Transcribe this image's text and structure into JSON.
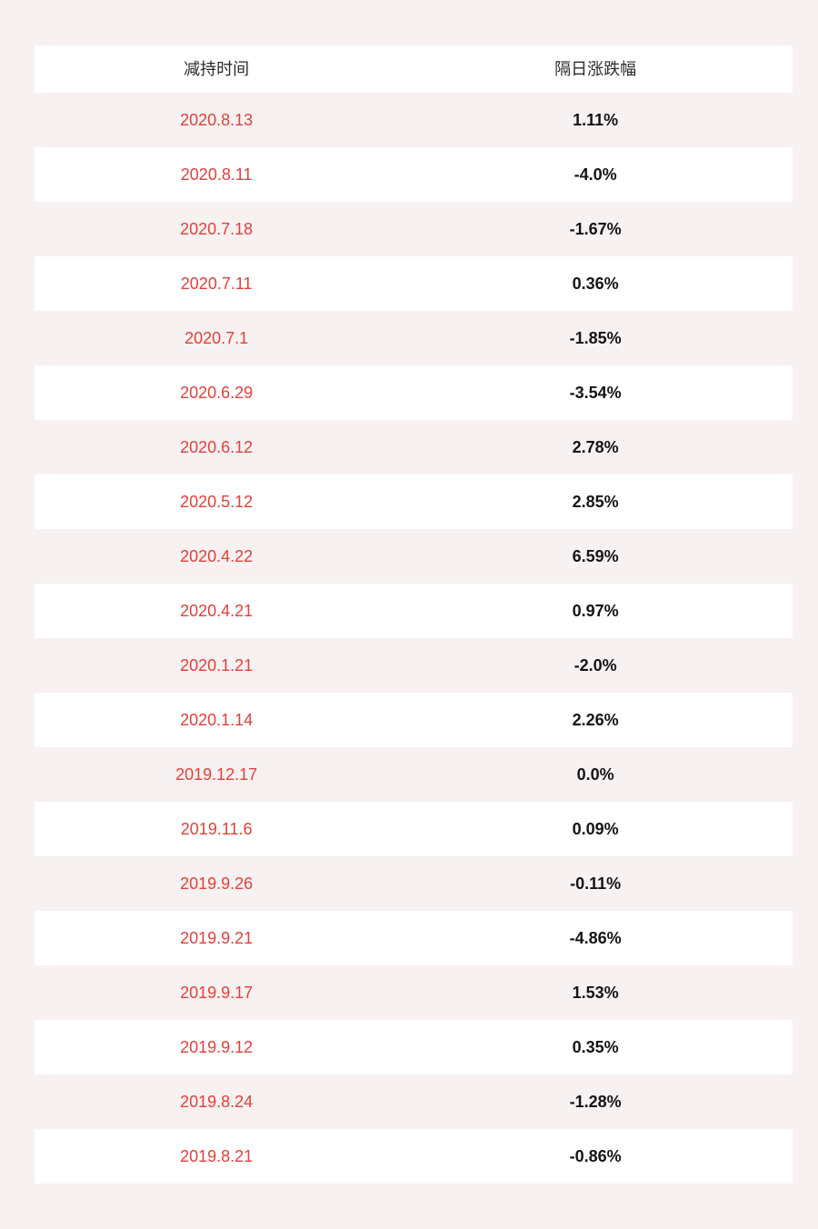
{
  "page": {
    "background_color": "#f7f1f1",
    "row_alt_color": "#ffffff",
    "date_text_color": "#e3403a",
    "value_text_color": "#141414"
  },
  "chart_data": {
    "type": "table",
    "title": "",
    "columns": [
      "减持时间",
      "隔日涨跌幅"
    ],
    "rows": [
      [
        "2020.8.13",
        "1.11%"
      ],
      [
        "2020.8.11",
        "-4.0%"
      ],
      [
        "2020.7.18",
        "-1.67%"
      ],
      [
        "2020.7.11",
        "0.36%"
      ],
      [
        "2020.7.1",
        "-1.85%"
      ],
      [
        "2020.6.29",
        "-3.54%"
      ],
      [
        "2020.6.12",
        "2.78%"
      ],
      [
        "2020.5.12",
        "2.85%"
      ],
      [
        "2020.4.22",
        "6.59%"
      ],
      [
        "2020.4.21",
        "0.97%"
      ],
      [
        "2020.1.21",
        "-2.0%"
      ],
      [
        "2020.1.14",
        "2.26%"
      ],
      [
        "2019.12.17",
        "0.0%"
      ],
      [
        "2019.11.6",
        "0.09%"
      ],
      [
        "2019.9.26",
        "-0.11%"
      ],
      [
        "2019.9.21",
        "-4.86%"
      ],
      [
        "2019.9.17",
        "1.53%"
      ],
      [
        "2019.9.12",
        "0.35%"
      ],
      [
        "2019.8.24",
        "-1.28%"
      ],
      [
        "2019.8.21",
        "-0.86%"
      ]
    ],
    "change_pct_numeric": [
      1.11,
      -4.0,
      -1.67,
      0.36,
      -1.85,
      -3.54,
      2.78,
      2.85,
      6.59,
      0.97,
      -2.0,
      2.26,
      0.0,
      0.09,
      -0.11,
      -4.86,
      1.53,
      0.35,
      -1.28,
      -0.86
    ],
    "layout": {
      "row_striping": "alternating white and page-pink, first data row pink",
      "column_alignment": "center"
    }
  }
}
